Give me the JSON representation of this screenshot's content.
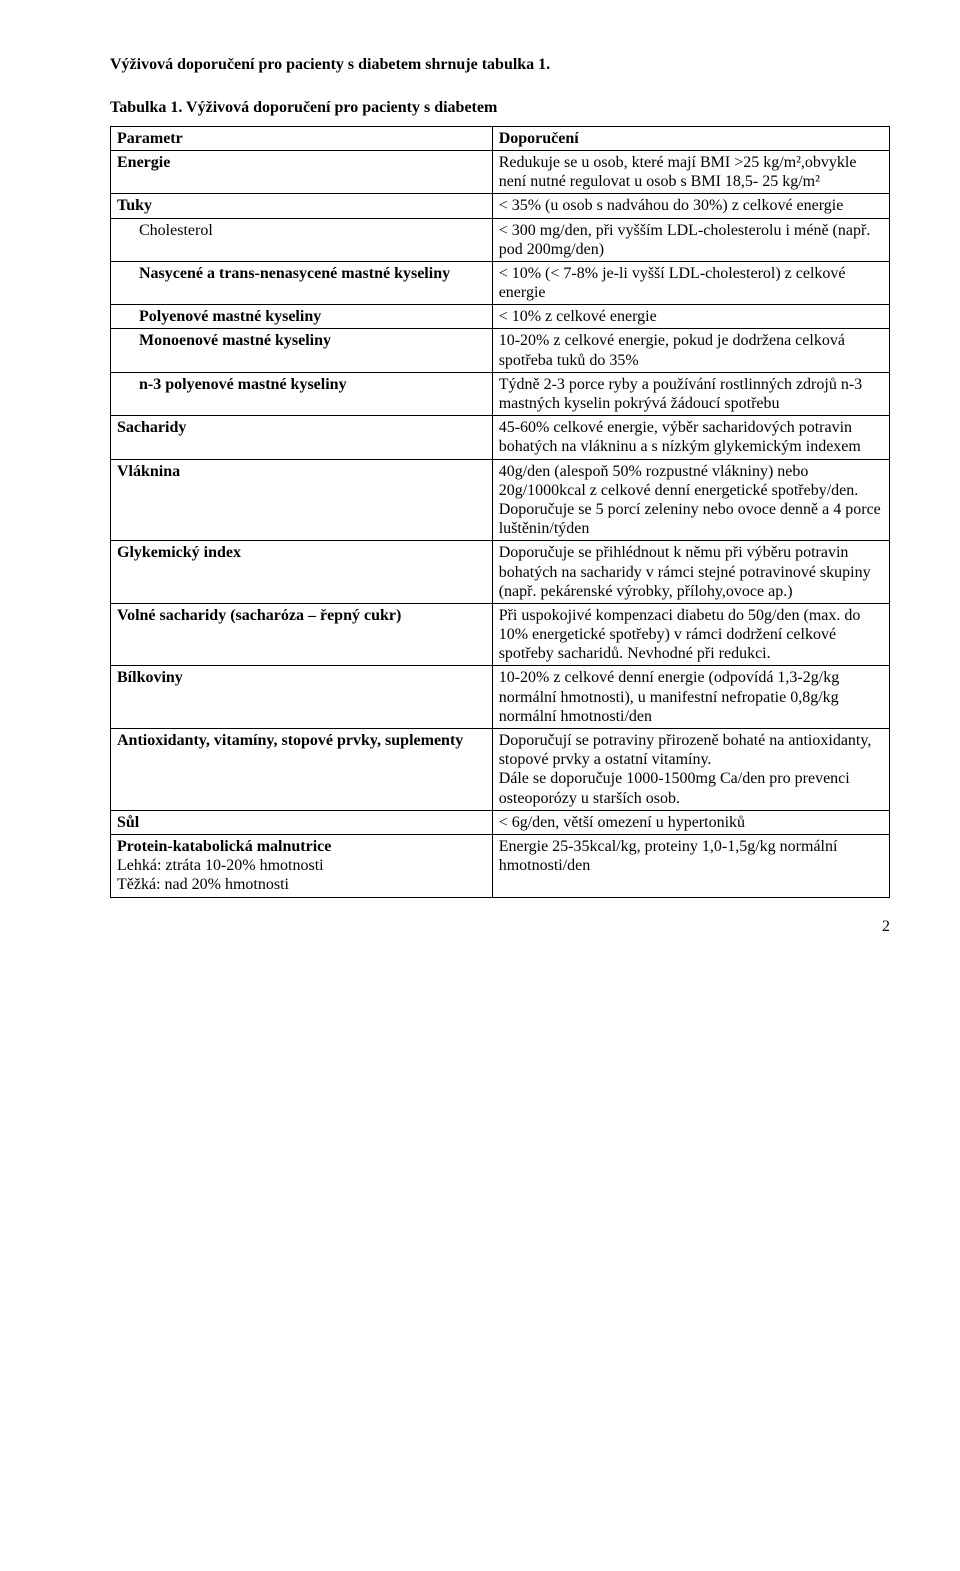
{
  "intro": "Výživová doporučení pro pacienty s diabetem shrnuje tabulka 1.",
  "caption": "Tabulka 1. Výživová doporučení pro pacienty s diabetem",
  "header": {
    "param": "Parametr",
    "rec": "Doporučení"
  },
  "rows": {
    "energie": {
      "p": "Energie",
      "r": "Redukuje se u osob, které mají BMI >25 kg/m²,obvykle není nutné regulovat u osob s BMI 18,5- 25 kg/m²"
    },
    "tuky": {
      "p": "Tuky",
      "r": "< 35% (u osob s nadváhou do 30%) z celkové energie"
    },
    "cholesterol": {
      "p": "Cholesterol",
      "r": "< 300 mg/den, při vyšším LDL-cholesterolu i méně (např. pod 200mg/den)"
    },
    "nasycene": {
      "p": "Nasycené a trans-nenasycené mastné kyseliny",
      "r": "< 10% (< 7-8% je-li vyšší LDL-cholesterol) z celkové energie"
    },
    "polyenove": {
      "p": "Polyenové mastné kyseliny",
      "r": "< 10% z celkové energie"
    },
    "monoenove": {
      "p": "Monoenové mastné kyseliny",
      "r": "10-20% z celkové energie, pokud je dodržena celková spotřeba tuků do 35%"
    },
    "n3": {
      "p": "n-3 polyenové mastné kyseliny",
      "r": "Týdně 2-3 porce ryby a používání rostlinných zdrojů n-3 mastných kyselin pokrývá žádoucí spotřebu"
    },
    "sacharidy": {
      "p": "Sacharidy",
      "r": "45-60% celkové energie, výběr sacharidových potravin bohatých na vlákninu a s nízkým glykemickým indexem"
    },
    "vlaknina": {
      "p": "Vláknina",
      "r": "40g/den (alespoň 50% rozpustné vlákniny) nebo 20g/1000kcal z celkové denní energetické spotřeby/den. Doporučuje se 5 porcí zeleniny nebo ovoce denně a 4 porce luštěnin/týden"
    },
    "gi": {
      "p": "Glykemický index",
      "r": "Doporučuje se přihlédnout k němu při výběru potravin bohatých na sacharidy v rámci stejné potravinové skupiny (např. pekárenské výrobky, přílohy,ovoce ap.)"
    },
    "volne": {
      "p": "Volné sacharidy (sacharóza – řepný cukr)",
      "r": "Při uspokojivé kompenzaci diabetu do 50g/den (max. do 10% energetické spotřeby) v rámci dodržení celkové spotřeby sacharidů. Nevhodné při redukci."
    },
    "bilkoviny": {
      "p": "Bílkoviny",
      "r": "10-20% z celkové denní energie (odpovídá 1,3-2g/kg normální hmotnosti), u manifestní nefropatie 0,8g/kg normální hmotnosti/den"
    },
    "antiox": {
      "p": "Antioxidanty, vitamíny, stopové prvky, suplementy",
      "r": "Doporučují se potraviny přirozeně bohaté na antioxidanty, stopové prvky a ostatní vitamíny.\nDále se doporučuje 1000-1500mg Ca/den pro prevenci osteoporózy u starších osob."
    },
    "sul": {
      "p": "Sůl",
      "r": "< 6g/den, větší omezení u hypertoniků"
    },
    "pkm": {
      "p_bold": "Protein-katabolická malnutrice",
      "p_rest": "Lehká: ztráta 10-20% hmotnosti\nTěžká: nad 20% hmotnosti",
      "r": "Energie 25-35kcal/kg, proteiny 1,0-1,5g/kg normální hmotnosti/den"
    }
  },
  "page_number": "2"
}
